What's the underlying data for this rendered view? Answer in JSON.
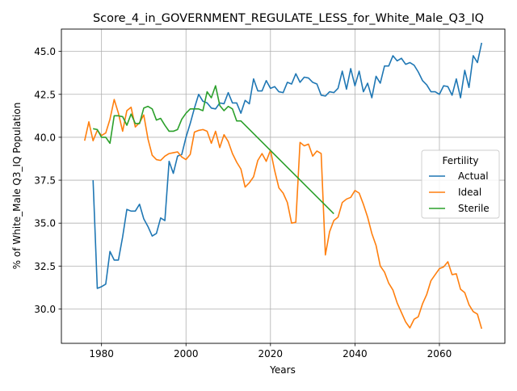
{
  "chart_data": {
    "type": "line",
    "title": "Score_4_in_GOVERNMENT_REGULATE_LESS_for_White_Male_Q3_IQ",
    "xlabel": "Years",
    "ylabel": "% of White_Male Q3_IQ Population",
    "xlim": [
      1970.5,
      2075.5
    ],
    "ylim": [
      28.0,
      46.3
    ],
    "xticks": [
      1980,
      2000,
      2020,
      2040,
      2060
    ],
    "yticks": [
      30.0,
      32.5,
      35.0,
      37.5,
      40.0,
      42.5,
      45.0
    ],
    "ytick_labels": [
      "30.0",
      "32.5",
      "35.0",
      "37.5",
      "40.0",
      "42.5",
      "45.0"
    ],
    "grid": true,
    "legend": {
      "title": "Fertility",
      "placement": "center-right"
    },
    "series": [
      {
        "name": "Actual",
        "color": "#1f77b4",
        "x": [
          1978,
          1979,
          1980,
          1981,
          1982,
          1983,
          1984,
          1985,
          1986,
          1987,
          1988,
          1989,
          1990,
          1991,
          1992,
          1993,
          1994,
          1995,
          1996,
          1997,
          1998,
          1999,
          2000,
          2001,
          2002,
          2003,
          2004,
          2005,
          2006,
          2007,
          2008,
          2009,
          2010,
          2011,
          2012,
          2013,
          2014,
          2015,
          2016,
          2017,
          2018,
          2019,
          2020,
          2021,
          2022,
          2023,
          2024,
          2025,
          2026,
          2027,
          2028,
          2029,
          2030,
          2031,
          2032,
          2033,
          2034,
          2035,
          2036,
          2037,
          2038,
          2039,
          2040,
          2041,
          2042,
          2043,
          2044,
          2045,
          2046,
          2047,
          2048,
          2049,
          2050,
          2051,
          2052,
          2053,
          2054,
          2055,
          2056,
          2057,
          2058,
          2059,
          2060,
          2061,
          2062,
          2063,
          2064,
          2065,
          2066,
          2067,
          2068,
          2069,
          2070
        ],
        "values": [
          37.5,
          31.2,
          31.3,
          31.45,
          33.35,
          32.85,
          32.85,
          34.2,
          35.8,
          35.7,
          35.7,
          36.1,
          35.25,
          34.8,
          34.25,
          34.4,
          35.3,
          35.15,
          38.6,
          37.9,
          38.9,
          39.0,
          40.0,
          40.8,
          41.7,
          42.5,
          42.1,
          42.0,
          41.7,
          41.65,
          42.0,
          41.95,
          42.6,
          42.0,
          42.0,
          41.4,
          42.15,
          41.95,
          43.4,
          42.7,
          42.7,
          43.3,
          42.85,
          42.95,
          42.65,
          42.6,
          43.2,
          43.1,
          43.7,
          43.2,
          43.5,
          43.45,
          43.2,
          43.1,
          42.45,
          42.4,
          42.65,
          42.6,
          42.85,
          43.85,
          42.8,
          44.0,
          43.0,
          43.85,
          42.65,
          43.15,
          42.3,
          43.55,
          43.15,
          44.15,
          44.15,
          44.75,
          44.45,
          44.6,
          44.25,
          44.35,
          44.2,
          43.8,
          43.3,
          43.05,
          42.65,
          42.65,
          42.5,
          43.0,
          42.95,
          42.45,
          43.4,
          42.3,
          43.9,
          42.9,
          44.75,
          44.35,
          45.5
        ]
      },
      {
        "name": "Ideal",
        "color": "#ff7f0e",
        "x": [
          1976,
          1977,
          1978,
          1979,
          1980,
          1981,
          1982,
          1983,
          1984,
          1985,
          1986,
          1987,
          1988,
          1989,
          1990,
          1991,
          1992,
          1993,
          1994,
          1995,
          1996,
          1997,
          1998,
          1999,
          2000,
          2001,
          2002,
          2003,
          2004,
          2005,
          2006,
          2007,
          2008,
          2009,
          2010,
          2011,
          2012,
          2013,
          2014,
          2015,
          2016,
          2017,
          2018,
          2019,
          2020,
          2021,
          2022,
          2023,
          2024,
          2025,
          2026,
          2027,
          2028,
          2029,
          2030,
          2031,
          2032,
          2033,
          2034,
          2035,
          2036,
          2037,
          2038,
          2039,
          2040,
          2041,
          2042,
          2043,
          2044,
          2045,
          2046,
          2047,
          2048,
          2049,
          2050,
          2051,
          2052,
          2053,
          2054,
          2055,
          2056,
          2057,
          2058,
          2059,
          2060,
          2061,
          2062,
          2063,
          2064,
          2065,
          2066,
          2067,
          2068,
          2069,
          2070
        ],
        "values": [
          39.8,
          40.9,
          39.8,
          40.4,
          40.1,
          40.25,
          41.05,
          42.2,
          41.4,
          40.35,
          41.55,
          41.75,
          40.6,
          40.85,
          41.3,
          39.9,
          38.95,
          38.7,
          38.65,
          38.9,
          39.05,
          39.1,
          39.15,
          38.85,
          38.7,
          39.0,
          40.3,
          40.4,
          40.45,
          40.35,
          39.65,
          40.35,
          39.4,
          40.15,
          39.75,
          39.05,
          38.55,
          38.15,
          37.1,
          37.35,
          37.7,
          38.65,
          39.05,
          38.6,
          39.25,
          38.05,
          37.05,
          36.75,
          36.2,
          35.0,
          35.05,
          39.7,
          39.5,
          39.6,
          38.9,
          39.2,
          39.05,
          33.15,
          34.5,
          35.15,
          35.35,
          36.2,
          36.4,
          36.5,
          36.9,
          36.75,
          36.1,
          35.35,
          34.4,
          33.7,
          32.5,
          32.15,
          31.5,
          31.1,
          30.35,
          29.8,
          29.25,
          28.9,
          29.4,
          29.55,
          30.3,
          30.85,
          31.65,
          32.0,
          32.35,
          32.45,
          32.75,
          32.0,
          32.05,
          31.15,
          30.95,
          30.25,
          29.85,
          29.7,
          28.85
        ]
      },
      {
        "name": "Sterile",
        "color": "#2ca02c",
        "x": [
          1978,
          1979,
          1980,
          1981,
          1982,
          1983,
          1984,
          1985,
          1986,
          1987,
          1988,
          1989,
          1990,
          1991,
          1992,
          1993,
          1994,
          1995,
          1996,
          1997,
          1998,
          1999,
          2000,
          2001,
          2002,
          2003,
          2004,
          2005,
          2006,
          2007,
          2008,
          2009,
          2010,
          2011,
          2012,
          2013,
          2035
        ],
        "values": [
          40.5,
          40.45,
          40.0,
          40.0,
          39.65,
          41.25,
          41.25,
          41.2,
          40.7,
          41.35,
          40.8,
          40.8,
          41.7,
          41.8,
          41.65,
          41.0,
          41.1,
          40.7,
          40.35,
          40.35,
          40.45,
          41.05,
          41.4,
          41.65,
          41.65,
          41.65,
          41.55,
          42.65,
          42.3,
          43.0,
          41.85,
          41.55,
          41.8,
          41.65,
          40.95,
          40.95,
          35.55
        ]
      }
    ]
  }
}
